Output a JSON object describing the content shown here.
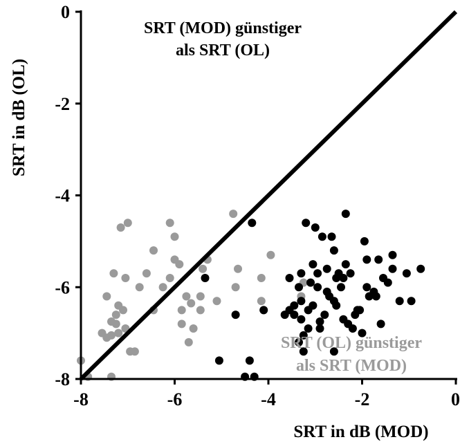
{
  "chart_data": {
    "type": "scatter",
    "title": "",
    "xlabel": "SRT in dB (MOD)",
    "ylabel": "SRT in dB (OL)",
    "xlim": [
      -8,
      0
    ],
    "ylim": [
      -8,
      0
    ],
    "xticks": [
      "-8",
      "-6",
      "-4",
      "-2",
      "0"
    ],
    "yticks": [
      "0",
      "-2",
      "-4",
      "-6",
      "-8"
    ],
    "reference_line": {
      "type": "identity",
      "from": [
        -8,
        -8
      ],
      "to": [
        0,
        0
      ],
      "color": "#000000"
    },
    "annotations": [
      {
        "lines": [
          "SRT (MOD) günstiger",
          "als SRT (OL)"
        ],
        "color": "#000000"
      },
      {
        "lines": [
          "SRT (OL) günstiger",
          "als SRT (MOD)"
        ],
        "color": "#9a9a9a"
      }
    ],
    "series": [
      {
        "color": "#9a9a9a",
        "points": [
          [
            -8.0,
            -7.6
          ],
          [
            -7.85,
            -7.95
          ],
          [
            -7.55,
            -7.0
          ],
          [
            -7.45,
            -7.1
          ],
          [
            -7.45,
            -6.2
          ],
          [
            -7.35,
            -7.05
          ],
          [
            -7.35,
            -6.75
          ],
          [
            -7.3,
            -5.7
          ],
          [
            -7.25,
            -6.8
          ],
          [
            -7.25,
            -6.6
          ],
          [
            -7.2,
            -7.0
          ],
          [
            -7.2,
            -6.4
          ],
          [
            -7.15,
            -4.7
          ],
          [
            -7.1,
            -6.5
          ],
          [
            -7.05,
            -6.9
          ],
          [
            -7.05,
            -5.8
          ],
          [
            -7.0,
            -4.6
          ],
          [
            -6.95,
            -7.4
          ],
          [
            -6.85,
            -7.4
          ],
          [
            -7.35,
            -7.95
          ],
          [
            -6.75,
            -6.0
          ],
          [
            -6.6,
            -5.7
          ],
          [
            -6.45,
            -6.5
          ],
          [
            -6.45,
            -5.2
          ],
          [
            -6.25,
            -6.0
          ],
          [
            -6.1,
            -5.8
          ],
          [
            -6.1,
            -4.6
          ],
          [
            -6.0,
            -5.4
          ],
          [
            -6.0,
            -4.9
          ],
          [
            -5.9,
            -5.5
          ],
          [
            -5.85,
            -6.5
          ],
          [
            -5.85,
            -6.8
          ],
          [
            -5.75,
            -6.2
          ],
          [
            -5.7,
            -7.2
          ],
          [
            -5.65,
            -6.35
          ],
          [
            -5.6,
            -6.9
          ],
          [
            -5.45,
            -6.5
          ],
          [
            -5.4,
            -5.6
          ],
          [
            -5.3,
            -5.4
          ],
          [
            -5.1,
            -6.3
          ],
          [
            -4.75,
            -4.4
          ],
          [
            -4.65,
            -5.6
          ],
          [
            -4.7,
            -6.0
          ],
          [
            -4.15,
            -5.8
          ],
          [
            -4.15,
            -6.3
          ],
          [
            -3.95,
            -5.3
          ],
          [
            -4.1,
            -6.5
          ],
          [
            -3.3,
            -6.2
          ],
          [
            -3.25,
            -5.9
          ],
          [
            -5.45,
            -6.2
          ]
        ]
      },
      {
        "color": "#000000",
        "points": [
          [
            -5.35,
            -5.8
          ],
          [
            -5.05,
            -7.6
          ],
          [
            -4.7,
            -6.6
          ],
          [
            -4.5,
            -7.95
          ],
          [
            -4.4,
            -7.6
          ],
          [
            -4.35,
            -4.6
          ],
          [
            -4.3,
            -7.95
          ],
          [
            -4.1,
            -6.5
          ],
          [
            -3.65,
            -6.6
          ],
          [
            -3.55,
            -6.5
          ],
          [
            -3.55,
            -5.8
          ],
          [
            -3.45,
            -6.4
          ],
          [
            -3.45,
            -6.6
          ],
          [
            -3.35,
            -6.0
          ],
          [
            -3.35,
            -7.2
          ],
          [
            -3.3,
            -6.7
          ],
          [
            -3.3,
            -5.7
          ],
          [
            -3.3,
            -6.3
          ],
          [
            -3.25,
            -7.05
          ],
          [
            -3.25,
            -7.4
          ],
          [
            -3.2,
            -4.6
          ],
          [
            -3.15,
            -6.9
          ],
          [
            -3.15,
            -6.5
          ],
          [
            -3.1,
            -5.9
          ],
          [
            -3.05,
            -6.4
          ],
          [
            -3.05,
            -5.5
          ],
          [
            -3.0,
            -4.7
          ],
          [
            -2.95,
            -5.7
          ],
          [
            -2.95,
            -6.0
          ],
          [
            -2.9,
            -6.9
          ],
          [
            -2.9,
            -6.75
          ],
          [
            -2.85,
            -4.9
          ],
          [
            -2.8,
            -6.6
          ],
          [
            -2.75,
            -5.6
          ],
          [
            -2.7,
            -6.2
          ],
          [
            -2.65,
            -4.9
          ],
          [
            -2.6,
            -5.2
          ],
          [
            -2.6,
            -6.3
          ],
          [
            -2.6,
            -7.4
          ],
          [
            -2.55,
            -6.4
          ],
          [
            -2.5,
            -5.7
          ],
          [
            -2.45,
            -6.0
          ],
          [
            -2.4,
            -5.8
          ],
          [
            -2.4,
            -6.7
          ],
          [
            -2.35,
            -4.4
          ],
          [
            -2.35,
            -5.5
          ],
          [
            -2.3,
            -6.8
          ],
          [
            -2.25,
            -5.7
          ],
          [
            -2.2,
            -6.9
          ],
          [
            -2.15,
            -6.6
          ],
          [
            -2.1,
            -6.5
          ],
          [
            -2.05,
            -6.5
          ],
          [
            -2.0,
            -7.0
          ],
          [
            -1.95,
            -5.0
          ],
          [
            -1.9,
            -5.4
          ],
          [
            -1.9,
            -6.0
          ],
          [
            -1.85,
            -6.2
          ],
          [
            -1.75,
            -6.1
          ],
          [
            -1.7,
            -6.2
          ],
          [
            -1.65,
            -5.4
          ],
          [
            -1.6,
            -6.8
          ],
          [
            -1.55,
            -5.8
          ],
          [
            -1.45,
            -5.9
          ],
          [
            -1.35,
            -5.3
          ],
          [
            -1.35,
            -5.6
          ],
          [
            -1.2,
            -6.3
          ],
          [
            -1.05,
            -5.7
          ],
          [
            -0.95,
            -6.3
          ],
          [
            -0.75,
            -5.6
          ],
          [
            -2.55,
            -5.8
          ],
          [
            -2.75,
            -6.1
          ]
        ]
      }
    ]
  }
}
